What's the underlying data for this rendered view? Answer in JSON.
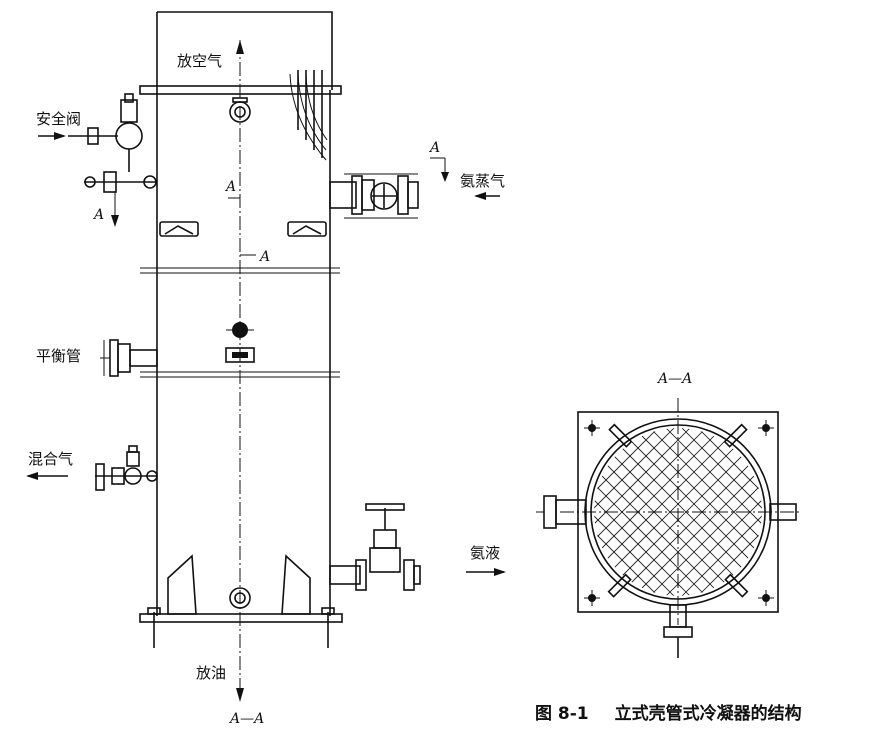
{
  "labels": {
    "vent_gas": "放空气",
    "safety_valve": "安全阀",
    "ammonia_vapor": "氨蒸气",
    "balance_pipe": "平衡管",
    "mixed_gas": "混合气",
    "liquid_ammonia": "氨液",
    "oil_drain": "放油",
    "section_a_upper": "A",
    "section_a_mid": "A",
    "section_a_lower": "A",
    "section_a_right": "A",
    "section_a_valve": "A",
    "bottom_section": "A—A",
    "right_section_title": "A—A"
  },
  "caption": {
    "number": "图 8-1",
    "title": "立式壳管式冷凝器的结构"
  }
}
